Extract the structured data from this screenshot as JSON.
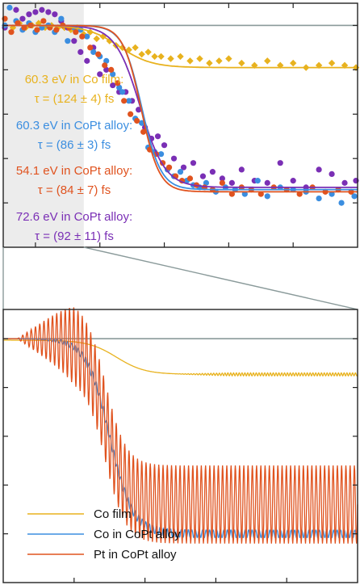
{
  "figure": {
    "colors": {
      "co_film": "#e8b21e",
      "co_copt": "#3b8ee0",
      "pt_copt": "#e0531f",
      "copt_72": "#7a2fb5",
      "reference": "#8a9a9a",
      "highlight": "#ececec",
      "axis": "#222222"
    }
  },
  "chart_data": [
    {
      "type": "scatter",
      "panel": "top",
      "title": "",
      "xlabel": "",
      "ylabel": "",
      "xlim": [
        -100,
        1000
      ],
      "ylim": [
        0.0,
        1.1
      ],
      "grid": false,
      "highlight_region_x": [
        -100,
        150
      ],
      "reference_level": 1.0,
      "annotations": [
        {
          "label": "60.3 eV in Co film:",
          "tau": "τ = (124 ± 4) fs",
          "color_key": "co_film"
        },
        {
          "label": "60.3 eV in CoPt alloy:",
          "tau": "τ = (86 ± 3) fs",
          "color_key": "co_copt"
        },
        {
          "label": "54.1 eV in CoPt alloy:",
          "tau": "τ = (84 ± 7) fs",
          "color_key": "pt_copt"
        },
        {
          "label": "72.6 eV in CoPt alloy:",
          "tau": "τ = (92 ± 11) fs",
          "color_key": "copt_72"
        }
      ],
      "series": [
        {
          "id": "co_film",
          "color_key": "co_film",
          "marker": "diamond",
          "points": [
            [
              -95,
              1.0
            ],
            [
              -70,
              0.99
            ],
            [
              -50,
              1.01
            ],
            [
              -30,
              0.99
            ],
            [
              -10,
              1.0
            ],
            [
              10,
              1.01
            ],
            [
              30,
              0.99
            ],
            [
              50,
              1.0
            ],
            [
              70,
              0.99
            ],
            [
              90,
              0.99
            ],
            [
              110,
              0.98
            ],
            [
              130,
              0.99
            ],
            [
              150,
              0.96
            ],
            [
              170,
              0.97
            ],
            [
              190,
              0.94
            ],
            [
              210,
              0.95
            ],
            [
              230,
              0.93
            ],
            [
              250,
              0.91
            ],
            [
              270,
              0.9
            ],
            [
              290,
              0.89
            ],
            [
              310,
              0.9
            ],
            [
              330,
              0.87
            ],
            [
              350,
              0.88
            ],
            [
              370,
              0.86
            ],
            [
              390,
              0.86
            ],
            [
              420,
              0.85
            ],
            [
              450,
              0.86
            ],
            [
              480,
              0.84
            ],
            [
              510,
              0.85
            ],
            [
              540,
              0.83
            ],
            [
              570,
              0.84
            ],
            [
              600,
              0.85
            ],
            [
              640,
              0.83
            ],
            [
              680,
              0.82
            ],
            [
              720,
              0.84
            ],
            [
              760,
              0.82
            ],
            [
              800,
              0.83
            ],
            [
              840,
              0.81
            ],
            [
              880,
              0.82
            ],
            [
              920,
              0.83
            ],
            [
              960,
              0.82
            ],
            [
              995,
              0.81
            ]
          ],
          "fit": {
            "base": 0.81,
            "drop": 0.19,
            "center": 260,
            "width": 110
          }
        },
        {
          "id": "co_copt",
          "color_key": "co_copt",
          "marker": "circle",
          "points": [
            [
              -95,
              1.0
            ],
            [
              -80,
              1.08
            ],
            [
              -60,
              1.02
            ],
            [
              -40,
              0.98
            ],
            [
              -20,
              1.01
            ],
            [
              0,
              0.97
            ],
            [
              20,
              0.99
            ],
            [
              40,
              1.0
            ],
            [
              60,
              0.97
            ],
            [
              80,
              1.03
            ],
            [
              100,
              0.93
            ],
            [
              120,
              0.99
            ],
            [
              140,
              0.98
            ],
            [
              160,
              0.95
            ],
            [
              180,
              0.88
            ],
            [
              200,
              0.86
            ],
            [
              220,
              0.84
            ],
            [
              240,
              0.78
            ],
            [
              260,
              0.72
            ],
            [
              270,
              0.7
            ],
            [
              290,
              0.66
            ],
            [
              310,
              0.58
            ],
            [
              330,
              0.56
            ],
            [
              350,
              0.45
            ],
            [
              370,
              0.43
            ],
            [
              390,
              0.42
            ],
            [
              410,
              0.35
            ],
            [
              430,
              0.32
            ],
            [
              450,
              0.34
            ],
            [
              470,
              0.3
            ],
            [
              490,
              0.28
            ],
            [
              510,
              0.27
            ],
            [
              530,
              0.29
            ],
            [
              560,
              0.25
            ],
            [
              590,
              0.27
            ],
            [
              620,
              0.26
            ],
            [
              650,
              0.24
            ],
            [
              690,
              0.3
            ],
            [
              720,
              0.23
            ],
            [
              760,
              0.27
            ],
            [
              800,
              0.26
            ],
            [
              840,
              0.25
            ],
            [
              880,
              0.22
            ],
            [
              920,
              0.24
            ],
            [
              950,
              0.2
            ],
            [
              990,
              0.23
            ]
          ],
          "fit": {
            "base": 0.26,
            "drop": 0.74,
            "center": 330,
            "width": 65
          }
        },
        {
          "id": "pt_copt",
          "color_key": "pt_copt",
          "marker": "circle",
          "points": [
            [
              -95,
              1.03
            ],
            [
              -75,
              0.97
            ],
            [
              -55,
              1.01
            ],
            [
              -35,
              0.99
            ],
            [
              -15,
              1.0
            ],
            [
              5,
              0.98
            ],
            [
              25,
              1.02
            ],
            [
              45,
              0.99
            ],
            [
              65,
              0.98
            ],
            [
              85,
              1.0
            ],
            [
              105,
              0.99
            ],
            [
              125,
              0.97
            ],
            [
              145,
              0.95
            ],
            [
              170,
              0.9
            ],
            [
              195,
              0.87
            ],
            [
              215,
              0.82
            ],
            [
              235,
              0.8
            ],
            [
              255,
              0.74
            ],
            [
              275,
              0.66
            ],
            [
              295,
              0.6
            ],
            [
              315,
              0.57
            ],
            [
              335,
              0.52
            ],
            [
              355,
              0.44
            ],
            [
              375,
              0.42
            ],
            [
              395,
              0.38
            ],
            [
              415,
              0.36
            ],
            [
              435,
              0.32
            ],
            [
              455,
              0.3
            ],
            [
              480,
              0.31
            ],
            [
              500,
              0.28
            ],
            [
              525,
              0.27
            ],
            [
              550,
              0.26
            ],
            [
              580,
              0.29
            ],
            [
              610,
              0.24
            ],
            [
              640,
              0.27
            ],
            [
              670,
              0.26
            ],
            [
              700,
              0.24
            ],
            [
              740,
              0.27
            ],
            [
              780,
              0.26
            ],
            [
              820,
              0.24
            ],
            [
              860,
              0.27
            ],
            [
              900,
              0.25
            ],
            [
              940,
              0.26
            ],
            [
              980,
              0.25
            ]
          ],
          "fit": {
            "base": 0.25,
            "drop": 0.75,
            "center": 328,
            "width": 62
          }
        },
        {
          "id": "copt_72",
          "color_key": "copt_72",
          "marker": "circle",
          "points": [
            [
              -95,
              0.99
            ],
            [
              -60,
              1.07
            ],
            [
              -40,
              1.03
            ],
            [
              -20,
              1.05
            ],
            [
              0,
              1.06
            ],
            [
              20,
              1.07
            ],
            [
              40,
              1.06
            ],
            [
              60,
              1.05
            ],
            [
              80,
              1.02
            ],
            [
              100,
              0.99
            ],
            [
              120,
              0.93
            ],
            [
              140,
              0.88
            ],
            [
              160,
              0.84
            ],
            [
              180,
              0.9
            ],
            [
              200,
              0.78
            ],
            [
              220,
              0.8
            ],
            [
              240,
              0.73
            ],
            [
              260,
              0.7
            ],
            [
              280,
              0.7
            ],
            [
              300,
              0.66
            ],
            [
              320,
              0.62
            ],
            [
              340,
              0.54
            ],
            [
              360,
              0.49
            ],
            [
              380,
              0.5
            ],
            [
              400,
              0.46
            ],
            [
              430,
              0.4
            ],
            [
              460,
              0.36
            ],
            [
              490,
              0.38
            ],
            [
              520,
              0.32
            ],
            [
              550,
              0.34
            ],
            [
              580,
              0.31
            ],
            [
              610,
              0.29
            ],
            [
              640,
              0.35
            ],
            [
              680,
              0.3
            ],
            [
              720,
              0.29
            ],
            [
              760,
              0.38
            ],
            [
              800,
              0.3
            ],
            [
              840,
              0.27
            ],
            [
              880,
              0.35
            ],
            [
              920,
              0.33
            ],
            [
              960,
              0.29
            ],
            [
              995,
              0.3
            ]
          ],
          "fit": {
            "base": 0.27,
            "drop": 0.73,
            "center": 325,
            "width": 85
          }
        }
      ]
    },
    {
      "type": "line",
      "panel": "bottom",
      "title": "",
      "xlabel": "",
      "ylabel": "",
      "xlim": [
        -100,
        150
      ],
      "ylim": [
        0.75,
        1.03
      ],
      "grid": false,
      "reference_level": 1.0,
      "legend": {
        "placement": "bottom-left"
      },
      "series": [
        {
          "name": "Co film",
          "color_key": "co_film",
          "model": {
            "base": 0.9635,
            "drop": 0.035,
            "center": -20,
            "width": 22,
            "osc_amp": 0.0015,
            "osc_period": 2.0,
            "osc_start": 120
          }
        },
        {
          "name": "Co in CoPt alloy",
          "color_key": "co_copt",
          "model": {
            "base": 0.8,
            "drop": 0.2,
            "center": -25,
            "width": 18,
            "osc_amp": 0.004,
            "osc_period": 2.5,
            "osc_start": 20
          }
        },
        {
          "name": "Pt in CoPt alloy",
          "color_key": "pt_copt",
          "model": {
            "base": 0.83,
            "drop": 0.17,
            "center": -28,
            "width": 16,
            "osc_amp": 0.04,
            "osc_period": 3.0,
            "osc_start": 10
          }
        }
      ]
    }
  ]
}
